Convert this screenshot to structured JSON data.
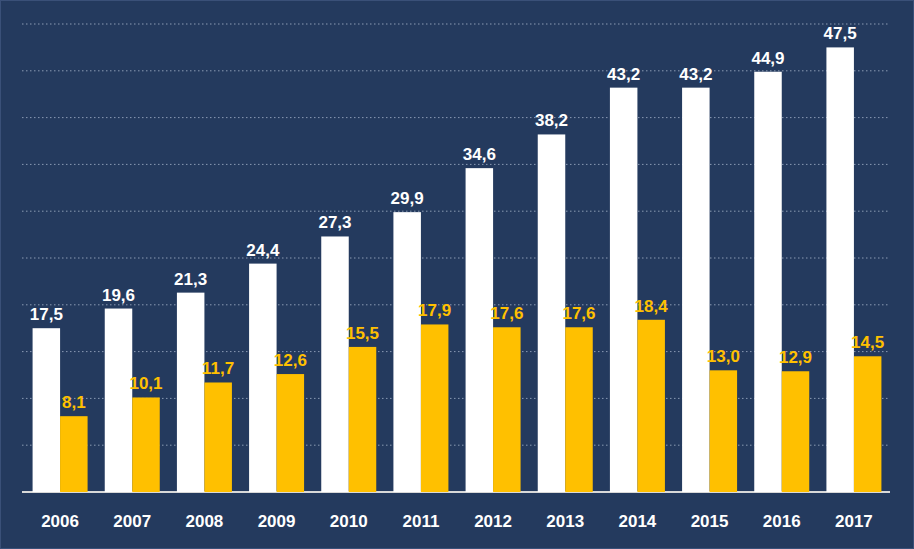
{
  "chart_data": {
    "type": "bar",
    "categories": [
      "2006",
      "2007",
      "2008",
      "2009",
      "2010",
      "2011",
      "2012",
      "2013",
      "2014",
      "2015",
      "2016",
      "2017"
    ],
    "series": [
      {
        "color": "#ffffff",
        "values": [
          17.5,
          19.6,
          21.3,
          24.4,
          27.3,
          29.9,
          34.6,
          38.2,
          43.2,
          43.2,
          44.9,
          47.5
        ],
        "value_labels": [
          "17,5",
          "19,6",
          "21,3",
          "24,4",
          "27,3",
          "29,9",
          "34,6",
          "38,2",
          "43,2",
          "43,2",
          "44,9",
          "47,5"
        ]
      },
      {
        "color": "#ffc000",
        "values": [
          8.1,
          10.1,
          11.7,
          12.6,
          15.5,
          17.9,
          17.6,
          17.6,
          18.4,
          13.0,
          12.9,
          14.5
        ],
        "value_labels": [
          "8,1",
          "10,1",
          "11,7",
          "12,6",
          "15,5",
          "17,9",
          "17,6",
          "17,6",
          "18,4",
          "13,0",
          "12,9",
          "14,5"
        ]
      }
    ],
    "ylim": [
      0,
      50
    ],
    "yticks": [
      0,
      5,
      10,
      15,
      20,
      25,
      30,
      35,
      40,
      45,
      50
    ],
    "grid": true,
    "data_labels": true,
    "tick_labels": "x"
  }
}
